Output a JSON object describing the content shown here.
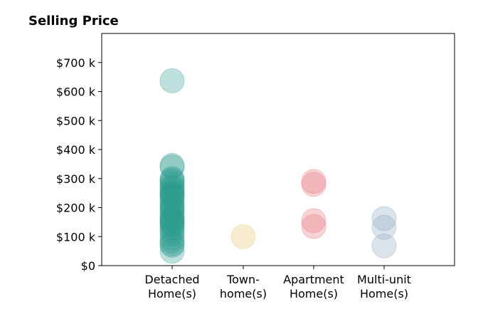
{
  "chart_data": {
    "type": "scatter",
    "title": "Selling Price",
    "xlabel": "",
    "ylabel": "",
    "categories": [
      [
        "Detached",
        "Home(s)"
      ],
      [
        "Town-",
        "home(s)"
      ],
      [
        "Apartment",
        "Home(s)"
      ],
      [
        "Multi-unit",
        "Home(s)"
      ]
    ],
    "ylim": [
      0,
      800000
    ],
    "yticks": [
      0,
      100000,
      200000,
      300000,
      400000,
      500000,
      600000,
      700000
    ],
    "ytick_labels": [
      "$0",
      "$100 k",
      "$200 k",
      "$300 k",
      "$400 k",
      "$500 k",
      "$600 k",
      "$700 k"
    ],
    "grid": false,
    "legend": "none",
    "series": [
      {
        "category_index": 0,
        "color": "#2a9d8f",
        "values": [
          637000,
          345000,
          340000,
          300000,
          295000,
          290000,
          280000,
          270000,
          265000,
          255000,
          250000,
          245000,
          240000,
          235000,
          225000,
          215000,
          205000,
          200000,
          195000,
          185000,
          175000,
          165000,
          160000,
          155000,
          150000,
          145000,
          140000,
          130000,
          120000,
          110000,
          95000,
          85000,
          75000,
          70000,
          50000
        ]
      },
      {
        "category_index": 1,
        "color": "#e9c46a",
        "values": [
          100000
        ]
      },
      {
        "category_index": 2,
        "color": "#e76f7a",
        "values": [
          290000,
          280000,
          155000,
          135000
        ]
      },
      {
        "category_index": 3,
        "color": "#8aa7be",
        "values": [
          162000,
          132000,
          68000
        ]
      }
    ]
  }
}
